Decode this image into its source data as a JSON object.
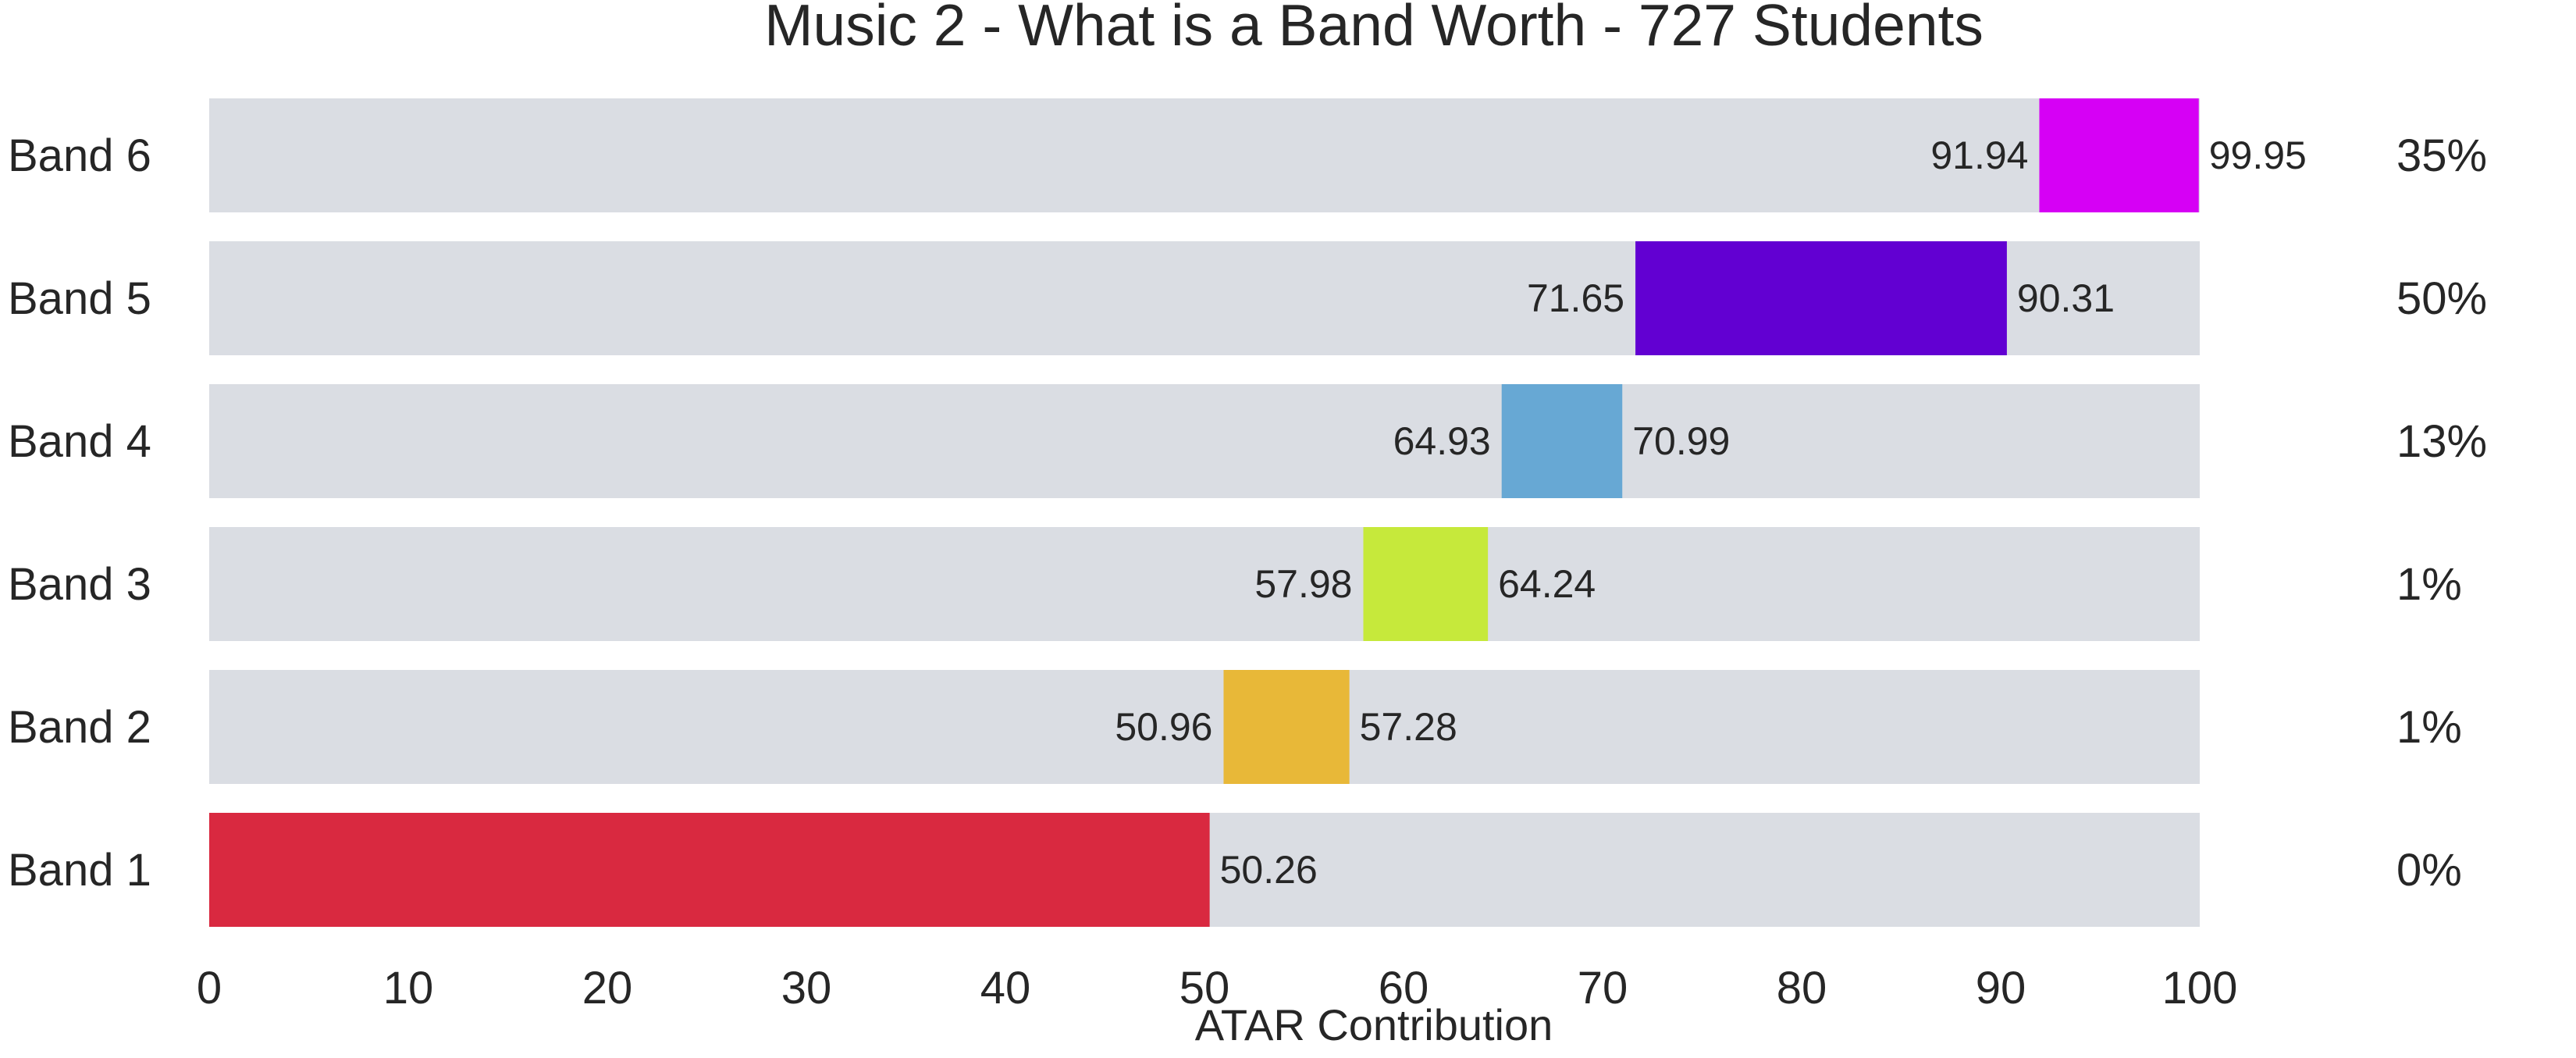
{
  "chart_data": {
    "type": "bar",
    "title": "Music 2 - What is a Band Worth - 727 Students",
    "xlabel": "ATAR Contribution",
    "ylabel": "",
    "xlim": [
      0,
      100
    ],
    "xticks": [
      0,
      10,
      20,
      30,
      40,
      50,
      60,
      70,
      80,
      90,
      100
    ],
    "categories": [
      "Band 6",
      "Band 5",
      "Band 4",
      "Band 3",
      "Band 2",
      "Band 1"
    ],
    "ranges": [
      {
        "band": "Band 6",
        "start": 91.94,
        "end": 99.95,
        "start_label": "91.94",
        "end_label": "99.95",
        "percent": "35%",
        "color": "#d600f5"
      },
      {
        "band": "Band 5",
        "start": 71.65,
        "end": 90.31,
        "start_label": "71.65",
        "end_label": "90.31",
        "percent": "50%",
        "color": "#6200d2"
      },
      {
        "band": "Band 4",
        "start": 64.93,
        "end": 70.99,
        "start_label": "64.93",
        "end_label": "70.99",
        "percent": "13%",
        "color": "#67a8d4"
      },
      {
        "band": "Band 3",
        "start": 57.98,
        "end": 64.24,
        "start_label": "57.98",
        "end_label": "64.24",
        "percent": "1%",
        "color": "#c6e93b"
      },
      {
        "band": "Band 2",
        "start": 50.96,
        "end": 57.28,
        "start_label": "50.96",
        "end_label": "57.28",
        "percent": "1%",
        "color": "#e8b838"
      },
      {
        "band": "Band 1",
        "start": 0,
        "end": 50.26,
        "start_label": "",
        "end_label": "50.26",
        "percent": "0%",
        "color": "#d92940"
      }
    ],
    "background_bar_color": "#dadde3",
    "grid": false,
    "legend": "none"
  }
}
